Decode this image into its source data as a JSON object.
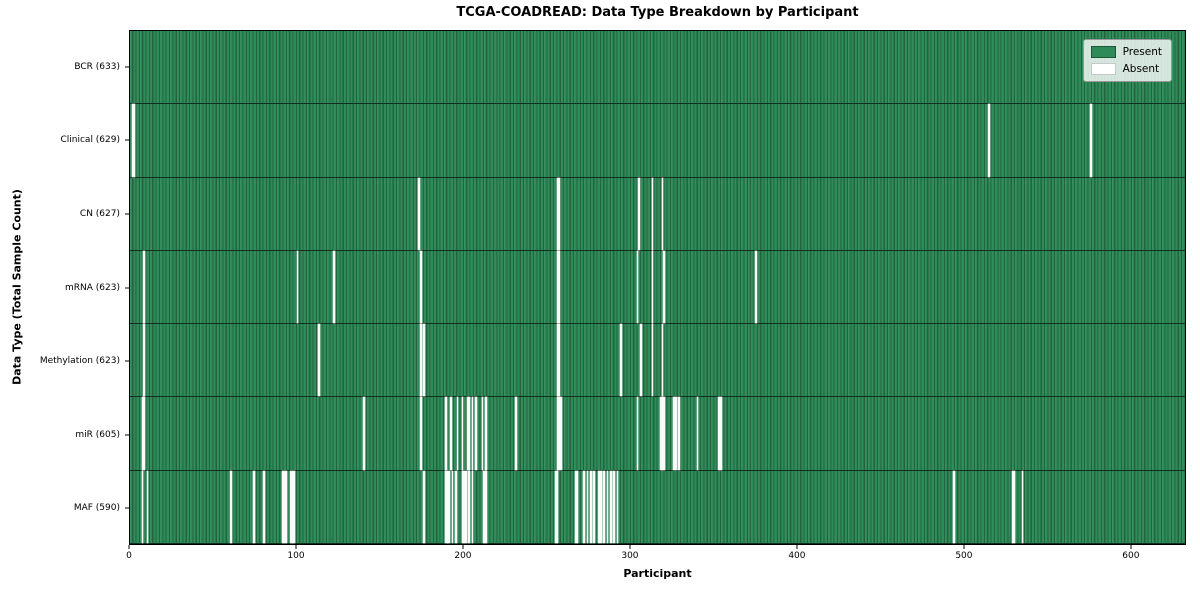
{
  "chart_data": {
    "type": "heatmap",
    "title": "TCGA-COADREAD: Data Type Breakdown by Participant",
    "xlabel": "Participant",
    "ylabel": "Data Type (Total Sample Count)",
    "n_participants": 633,
    "x_ticks": [
      0,
      100,
      200,
      300,
      400,
      500,
      600
    ],
    "xlim": [
      0,
      633
    ],
    "grid": false,
    "legend_position": "upper right",
    "legend": [
      {
        "label": "Present",
        "color": "#2e8b57"
      },
      {
        "label": "Absent",
        "color": "#ffffff"
      }
    ],
    "cell_colors": {
      "present": "#2e8b57",
      "absent": "#ffffff"
    },
    "rows": [
      {
        "name": "BCR",
        "label": "BCR (633)",
        "count": 633,
        "absent_participants": []
      },
      {
        "name": "Clinical",
        "label": "Clinical (629)",
        "count": 629,
        "absent_participants": [
          1,
          2,
          515,
          576
        ]
      },
      {
        "name": "CN",
        "label": "CN (627)",
        "count": 627,
        "absent_participants": [
          173,
          256,
          257,
          305,
          313,
          319
        ]
      },
      {
        "name": "mRNA",
        "label": "mRNA (623)",
        "count": 623,
        "absent_participants": [
          8,
          100,
          122,
          174,
          256,
          257,
          304,
          313,
          320,
          375
        ]
      },
      {
        "name": "Methylation",
        "label": "Methylation (623)",
        "count": 623,
        "absent_participants": [
          8,
          113,
          174,
          176,
          256,
          257,
          294,
          306,
          313,
          319
        ]
      },
      {
        "name": "miR",
        "label": "miR (605)",
        "count": 605,
        "absent_participants": [
          7,
          8,
          140,
          174,
          189,
          192,
          196,
          199,
          202,
          203,
          205,
          207,
          211,
          213,
          231,
          256,
          257,
          258,
          304,
          318,
          319,
          320,
          326,
          327,
          329,
          340,
          353,
          354
        ]
      },
      {
        "name": "MAF",
        "label": "MAF (590)",
        "count": 590,
        "absent_participants": [
          7,
          10,
          60,
          74,
          80,
          91,
          92,
          93,
          96,
          97,
          98,
          176,
          189,
          190,
          191,
          193,
          195,
          199,
          200,
          201,
          203,
          205,
          212,
          213,
          255,
          256,
          267,
          268,
          272,
          274,
          276,
          278,
          281,
          282,
          284,
          286,
          288,
          290,
          292,
          494,
          529,
          530,
          535
        ]
      }
    ]
  }
}
